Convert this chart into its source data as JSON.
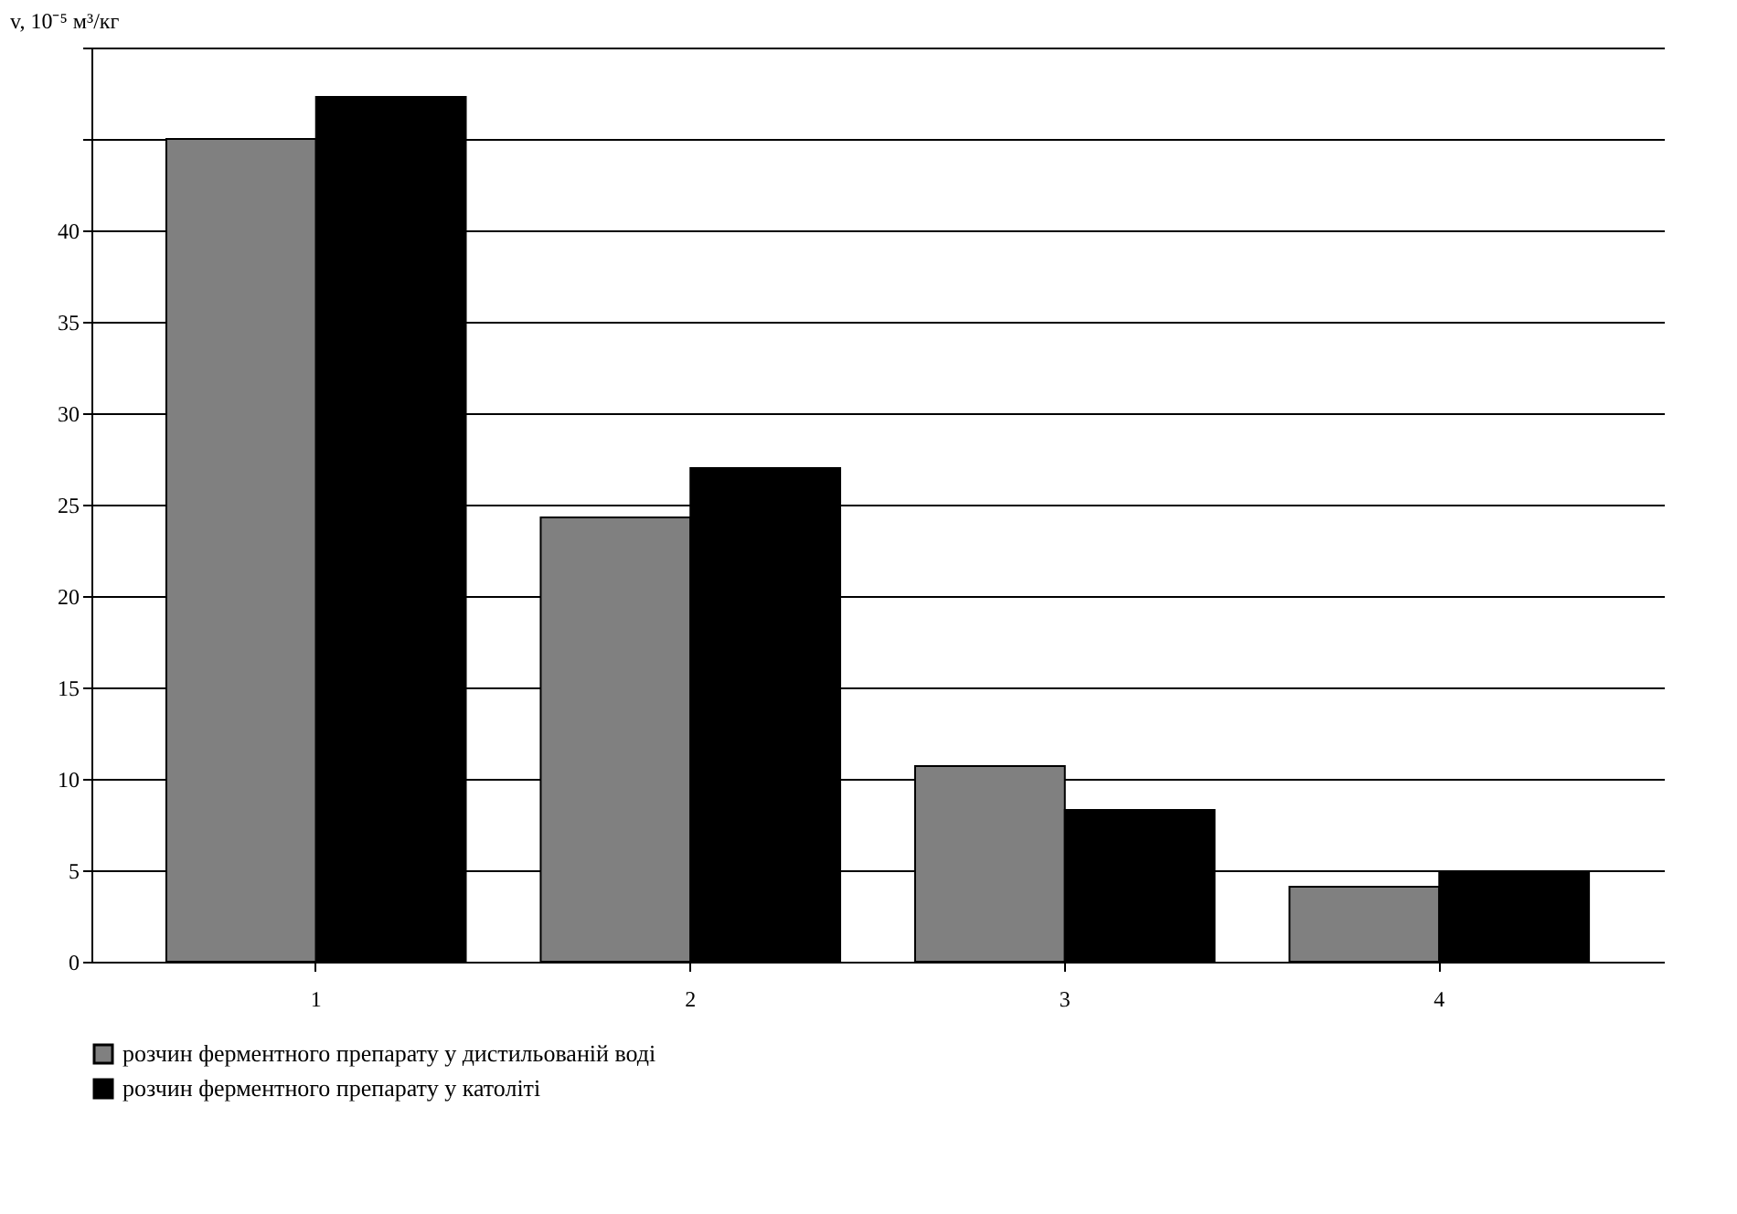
{
  "chart_data": {
    "type": "bar",
    "ylabel": "v, 10⁻⁵ м³/кг",
    "categories": [
      "1",
      "2",
      "3",
      "4"
    ],
    "series": [
      {
        "name": "розчин ферментного препарату у дистильованій воді",
        "color": "#808080",
        "values": [
          45.0,
          24.3,
          10.7,
          4.1
        ]
      },
      {
        "name": "розчин ферментного препарату у католіті",
        "color": "#000000",
        "values": [
          47.3,
          27.0,
          8.3,
          4.9
        ]
      }
    ],
    "ylim": [
      0,
      50
    ],
    "yticks": [
      0,
      5,
      10,
      15,
      20,
      25,
      30,
      35,
      40,
      {
        "value": 45,
        "label": null
      },
      {
        "value": 50,
        "label": null
      }
    ],
    "grid": "y",
    "legend": "bottom"
  }
}
